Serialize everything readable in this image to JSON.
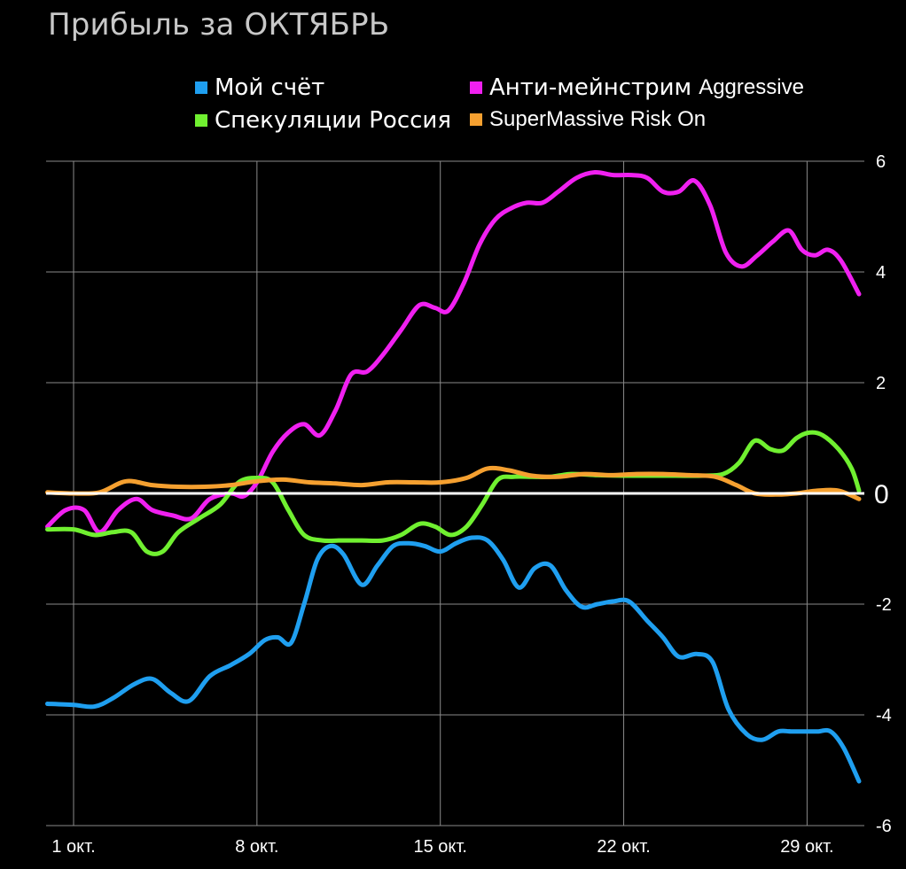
{
  "title": "Прибыль за ОКТЯБРЬ",
  "legend": [
    {
      "main": "Мой счёт",
      "sub": "",
      "color": "#1f9ff0"
    },
    {
      "main": "Анти-мейнстрим",
      "sub": "Aggressive",
      "color": "#f020f0"
    },
    {
      "main": "Спекуляции Россия",
      "sub": "",
      "color": "#70f030"
    },
    {
      "main": "",
      "sub": "SuperMassive Risk On",
      "color": "#f5a030"
    }
  ],
  "chart_data": {
    "type": "line",
    "title": "Прибыль за ОКТЯБРЬ",
    "xlabel": "",
    "ylabel": "",
    "x_tick_labels": [
      "1 окт.",
      "8 окт.",
      "15 окт.",
      "22 окт.",
      "29 окт."
    ],
    "x_tick_days": [
      1,
      8,
      15,
      22,
      29
    ],
    "xlim": [
      0,
      31
    ],
    "y_ticks": [
      6,
      4,
      2,
      0,
      -2,
      -4,
      -6
    ],
    "y_tick_labels": [
      "6",
      "4",
      "2",
      "0",
      "-2",
      "-4",
      "-6"
    ],
    "ylim": [
      -6,
      6
    ],
    "grid": true,
    "legend_position": "top",
    "series": [
      {
        "name": "Мой счёт",
        "color": "#1f9ff0",
        "x": [
          0,
          1,
          1.8,
          2.5,
          3.3,
          4,
          4.7,
          5.4,
          6.2,
          7,
          7.7,
          8.3,
          8.8,
          9.3,
          9.8,
          10.3,
          10.8,
          11.3,
          12,
          12.6,
          13.2,
          13.8,
          14.4,
          15,
          15.6,
          16.2,
          16.8,
          17.4,
          18,
          18.6,
          19.2,
          19.8,
          20.4,
          21,
          21.6,
          22.2,
          22.9,
          23.5,
          24.1,
          24.8,
          25.4,
          26,
          26.7,
          27.3,
          27.9,
          28.4,
          28.9,
          29.4,
          29.9,
          30.4,
          31
        ],
        "y": [
          -3.8,
          -3.82,
          -3.85,
          -3.7,
          -3.45,
          -3.35,
          -3.6,
          -3.75,
          -3.3,
          -3.1,
          -2.9,
          -2.65,
          -2.6,
          -2.7,
          -2.0,
          -1.2,
          -0.95,
          -1.1,
          -1.65,
          -1.3,
          -0.95,
          -0.9,
          -0.95,
          -1.05,
          -0.9,
          -0.8,
          -0.85,
          -1.2,
          -1.7,
          -1.35,
          -1.3,
          -1.75,
          -2.05,
          -2.0,
          -1.95,
          -1.95,
          -2.3,
          -2.6,
          -2.95,
          -2.9,
          -3.05,
          -3.9,
          -4.35,
          -4.45,
          -4.3,
          -4.3,
          -4.3,
          -4.3,
          -4.3,
          -4.6,
          -5.2
        ]
      },
      {
        "name": "Анти-мейнстрим Aggressive",
        "color": "#f020f0",
        "x": [
          0,
          0.7,
          1.4,
          2,
          2.7,
          3.4,
          4,
          4.8,
          5.5,
          6.2,
          7,
          7.5,
          8,
          8.6,
          9.2,
          9.8,
          10.4,
          11,
          11.6,
          12.2,
          12.8,
          13.5,
          14.2,
          14.8,
          15.3,
          15.9,
          16.5,
          17.1,
          17.7,
          18.3,
          18.9,
          19.5,
          20.2,
          20.9,
          21.6,
          22.3,
          22.9,
          23.5,
          24.1,
          24.7,
          25.3,
          25.9,
          26.5,
          27.1,
          27.7,
          28.3,
          28.8,
          29.3,
          29.8,
          30.3,
          31
        ],
        "y": [
          -0.6,
          -0.3,
          -0.3,
          -0.7,
          -0.3,
          -0.1,
          -0.3,
          -0.4,
          -0.45,
          -0.1,
          0,
          -0.05,
          0.2,
          0.75,
          1.1,
          1.25,
          1.05,
          1.5,
          2.15,
          2.2,
          2.5,
          2.95,
          3.4,
          3.35,
          3.3,
          3.8,
          4.5,
          4.95,
          5.15,
          5.25,
          5.25,
          5.45,
          5.7,
          5.8,
          5.75,
          5.75,
          5.7,
          5.45,
          5.45,
          5.65,
          5.2,
          4.35,
          4.1,
          4.3,
          4.55,
          4.75,
          4.4,
          4.3,
          4.4,
          4.2,
          3.6
        ]
      },
      {
        "name": "Спекуляции Россия",
        "color": "#70f030",
        "x": [
          0,
          1,
          1.8,
          2.5,
          3.2,
          3.8,
          4.4,
          5,
          5.8,
          6.6,
          7.3,
          8,
          8.6,
          9.2,
          9.8,
          10.5,
          11.2,
          12,
          12.8,
          13.5,
          14.2,
          14.8,
          15.4,
          16,
          16.6,
          17.2,
          17.8,
          18.5,
          19.2,
          20,
          21,
          22,
          23,
          24,
          25,
          25.8,
          26.4,
          27,
          27.6,
          28.1,
          28.6,
          29.1,
          29.6,
          30.2,
          30.7,
          31
        ],
        "y": [
          -0.65,
          -0.65,
          -0.75,
          -0.7,
          -0.7,
          -1.05,
          -1.05,
          -0.7,
          -0.45,
          -0.2,
          0.2,
          0.28,
          0.2,
          -0.3,
          -0.75,
          -0.85,
          -0.85,
          -0.85,
          -0.85,
          -0.75,
          -0.55,
          -0.6,
          -0.75,
          -0.6,
          -0.2,
          0.25,
          0.3,
          0.3,
          0.3,
          0.35,
          0.33,
          0.32,
          0.32,
          0.32,
          0.32,
          0.35,
          0.55,
          0.95,
          0.8,
          0.78,
          1.0,
          1.1,
          1.05,
          0.8,
          0.45,
          0.05
        ]
      },
      {
        "name": "SuperMassive Risk On",
        "color": "#f5a030",
        "x": [
          0,
          1,
          2,
          3,
          4,
          5,
          6,
          7,
          8,
          9,
          10,
          11,
          12,
          13,
          14,
          15,
          16,
          16.8,
          17.6,
          18.5,
          19.5,
          20.5,
          21.5,
          22.5,
          23.5,
          24.5,
          25.5,
          26.3,
          27,
          27.8,
          28.6,
          29.4,
          30.2,
          31
        ],
        "y": [
          0.02,
          0.0,
          0.02,
          0.22,
          0.15,
          0.12,
          0.12,
          0.15,
          0.22,
          0.25,
          0.2,
          0.18,
          0.15,
          0.2,
          0.2,
          0.2,
          0.28,
          0.45,
          0.42,
          0.32,
          0.3,
          0.35,
          0.33,
          0.35,
          0.35,
          0.33,
          0.3,
          0.15,
          0.0,
          -0.02,
          0.0,
          0.05,
          0.05,
          -0.1
        ]
      }
    ]
  }
}
